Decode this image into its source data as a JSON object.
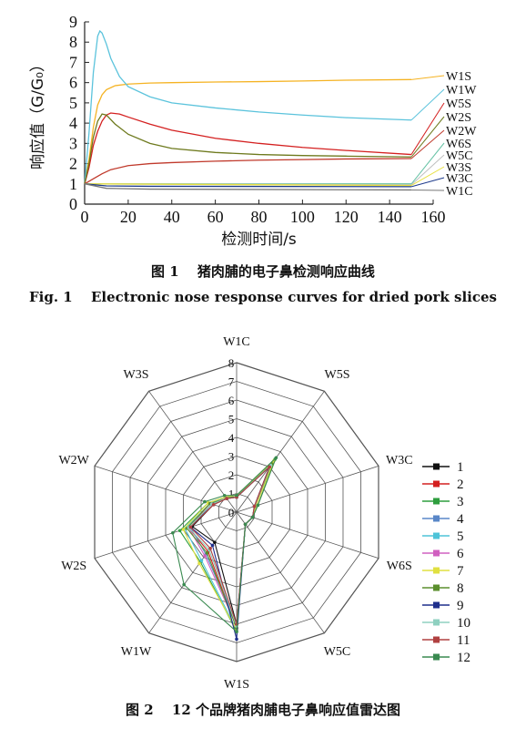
{
  "chart_data": [
    {
      "type": "line",
      "title": "",
      "xlabel": "检测时间/s",
      "ylabel": "响应值（G/G₀）",
      "xlim": [
        0,
        160
      ],
      "ylim": [
        0,
        9
      ],
      "xticks": [
        0,
        20,
        40,
        60,
        80,
        100,
        120,
        140,
        160
      ],
      "yticks": [
        0,
        1,
        2,
        3,
        4,
        5,
        6,
        7,
        8,
        9
      ],
      "series": [
        {
          "name": "W1S",
          "color": "#f5b323",
          "x": [
            0,
            2,
            4,
            6,
            8,
            10,
            14,
            20,
            30,
            40,
            60,
            80,
            100,
            120,
            150
          ],
          "y": [
            1,
            2.2,
            3.8,
            4.9,
            5.4,
            5.65,
            5.85,
            5.93,
            5.98,
            6.0,
            6.03,
            6.05,
            6.08,
            6.12,
            6.15
          ]
        },
        {
          "name": "W1W",
          "color": "#5bc3dc",
          "x": [
            0,
            2,
            4,
            6,
            7,
            8,
            10,
            12,
            16,
            20,
            30,
            40,
            60,
            80,
            100,
            120,
            150
          ],
          "y": [
            1,
            3.5,
            6.5,
            8.3,
            8.55,
            8.45,
            7.9,
            7.2,
            6.3,
            5.8,
            5.3,
            5.0,
            4.75,
            4.55,
            4.4,
            4.27,
            4.15
          ]
        },
        {
          "name": "W5S",
          "color": "#d42020",
          "x": [
            0,
            2,
            4,
            6,
            8,
            10,
            12,
            16,
            20,
            30,
            40,
            60,
            80,
            100,
            120,
            150
          ],
          "y": [
            1,
            1.8,
            2.9,
            3.6,
            4.1,
            4.4,
            4.5,
            4.45,
            4.3,
            3.95,
            3.65,
            3.25,
            3.0,
            2.8,
            2.65,
            2.45
          ]
        },
        {
          "name": "W2S",
          "color": "#6e7a1e",
          "x": [
            0,
            2,
            4,
            6,
            8,
            10,
            14,
            20,
            30,
            40,
            60,
            80,
            100,
            120,
            150
          ],
          "y": [
            1,
            2.0,
            3.3,
            4.1,
            4.45,
            4.4,
            3.95,
            3.45,
            3.0,
            2.75,
            2.55,
            2.45,
            2.4,
            2.37,
            2.33
          ]
        },
        {
          "name": "W2W",
          "color": "#c0392b",
          "x": [
            0,
            4,
            8,
            12,
            20,
            30,
            40,
            60,
            80,
            100,
            120,
            150
          ],
          "y": [
            1,
            1.25,
            1.5,
            1.7,
            1.9,
            2.0,
            2.05,
            2.12,
            2.17,
            2.2,
            2.23,
            2.25
          ]
        },
        {
          "name": "W6S",
          "color": "#66c2a5",
          "x": [
            0,
            150
          ],
          "y": [
            1,
            1.0
          ]
        },
        {
          "name": "W5C",
          "color": "#c0c0c0",
          "x": [
            0,
            150
          ],
          "y": [
            1,
            0.95
          ]
        },
        {
          "name": "W3S",
          "color": "#e8e040",
          "x": [
            0,
            150
          ],
          "y": [
            1,
            0.92
          ]
        },
        {
          "name": "W3C",
          "color": "#1f3c8c",
          "x": [
            0,
            10,
            30,
            150
          ],
          "y": [
            1,
            0.9,
            0.88,
            0.86
          ]
        },
        {
          "name": "W1C",
          "color": "#777777",
          "x": [
            0,
            10,
            30,
            150
          ],
          "y": [
            1,
            0.78,
            0.74,
            0.7
          ]
        }
      ]
    },
    {
      "type": "radar",
      "axes": [
        "W1C",
        "W5S",
        "W3C",
        "W6S",
        "W5C",
        "W1S",
        "W1W",
        "W2S",
        "W2W",
        "W3S"
      ],
      "rlim": [
        0,
        8
      ],
      "rticks": [
        0,
        1,
        2,
        3,
        4,
        5,
        6,
        7,
        8
      ],
      "series": [
        {
          "name": "1",
          "color": "#111111",
          "values": [
            0.8,
            3.0,
            1.0,
            0.9,
            0.8,
            6.0,
            2.0,
            2.5,
            1.3,
            0.9
          ]
        },
        {
          "name": "2",
          "color": "#d42020",
          "values": [
            0.9,
            3.2,
            1.1,
            0.9,
            0.8,
            6.2,
            2.6,
            2.7,
            1.5,
            1.0
          ]
        },
        {
          "name": "3",
          "color": "#2e9e3e",
          "values": [
            0.8,
            3.5,
            1.2,
            0.9,
            0.8,
            6.4,
            3.3,
            3.2,
            1.6,
            1.0
          ]
        },
        {
          "name": "4",
          "color": "#5a87c8",
          "values": [
            0.8,
            3.0,
            1.0,
            0.9,
            0.8,
            6.0,
            2.8,
            2.6,
            1.4,
            0.9
          ]
        },
        {
          "name": "5",
          "color": "#4ec3d8",
          "values": [
            0.9,
            3.3,
            1.1,
            0.9,
            0.8,
            6.3,
            3.2,
            2.9,
            1.5,
            1.0
          ]
        },
        {
          "name": "6",
          "color": "#d060c0",
          "values": [
            0.8,
            3.1,
            1.0,
            0.9,
            0.8,
            6.1,
            2.9,
            2.7,
            1.4,
            0.9
          ]
        },
        {
          "name": "7",
          "color": "#e0e040",
          "values": [
            0.9,
            3.4,
            1.1,
            0.9,
            0.8,
            6.3,
            3.4,
            3.0,
            1.6,
            1.0
          ]
        },
        {
          "name": "8",
          "color": "#5b8f2e",
          "values": [
            0.8,
            3.2,
            1.0,
            0.9,
            0.8,
            6.2,
            2.7,
            2.8,
            1.5,
            0.9
          ]
        },
        {
          "name": "9",
          "color": "#1f2f8c",
          "values": [
            0.8,
            3.0,
            1.0,
            0.9,
            0.8,
            6.8,
            2.2,
            2.6,
            1.4,
            0.9
          ]
        },
        {
          "name": "10",
          "color": "#8fd0c0",
          "values": [
            0.8,
            3.1,
            1.0,
            0.9,
            0.8,
            6.1,
            2.5,
            2.7,
            1.4,
            0.9
          ]
        },
        {
          "name": "11",
          "color": "#b04040",
          "values": [
            0.8,
            3.0,
            1.0,
            0.9,
            0.8,
            6.0,
            2.4,
            2.6,
            1.3,
            0.9
          ]
        },
        {
          "name": "12",
          "color": "#3a8a50",
          "values": [
            0.9,
            3.6,
            1.2,
            0.9,
            0.8,
            6.4,
            4.8,
            3.6,
            1.8,
            1.1
          ]
        }
      ]
    }
  ],
  "captions": {
    "fig1_cn": "图 1　 猪肉脯的电子鼻检测响应曲线",
    "fig1_en": "Fig. 1　 Electronic nose response curves for dried pork slices",
    "fig2_cn": "图 2　 12 个品牌猪肉脯电子鼻响应值雷达图"
  }
}
